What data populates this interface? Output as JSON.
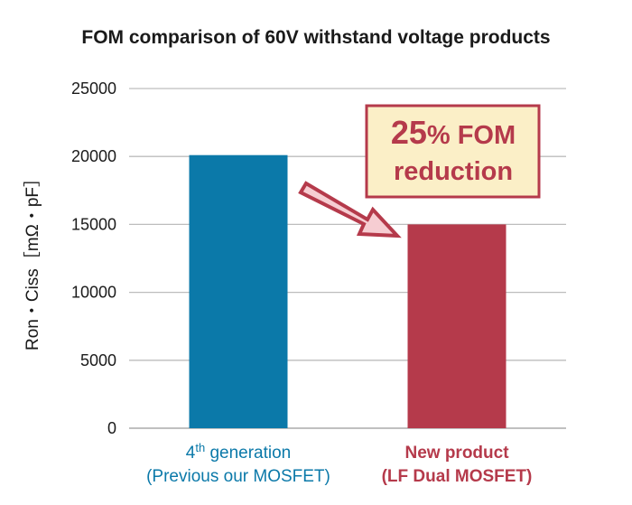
{
  "chart_data": {
    "type": "bar",
    "title": "FOM comparison of 60V withstand voltage products",
    "ylabel": "Ron・Ciss［mΩ・pF］",
    "xlabel": "",
    "ylim": [
      0,
      25000
    ],
    "yticks": [
      0,
      5000,
      10000,
      15000,
      20000,
      25000
    ],
    "grid": true,
    "categories": [
      {
        "line1_base": "4",
        "line1_sup": "th",
        "line1_rest": " generation",
        "line2": "(Previous our MOSFET)",
        "color": "#0b79a9"
      },
      {
        "line1_base": "New product",
        "line1_sup": "",
        "line1_rest": "",
        "line2": "(LF Dual MOSFET)",
        "color": "#b53a4b"
      }
    ],
    "values": [
      20100,
      15000
    ],
    "annotation": {
      "big": "25",
      "rest": "% FOM",
      "line2": "reduction",
      "box_fill": "#fbefc7",
      "border_color": "#b53a4b",
      "arrow_fill": "#f6cdd2"
    }
  }
}
